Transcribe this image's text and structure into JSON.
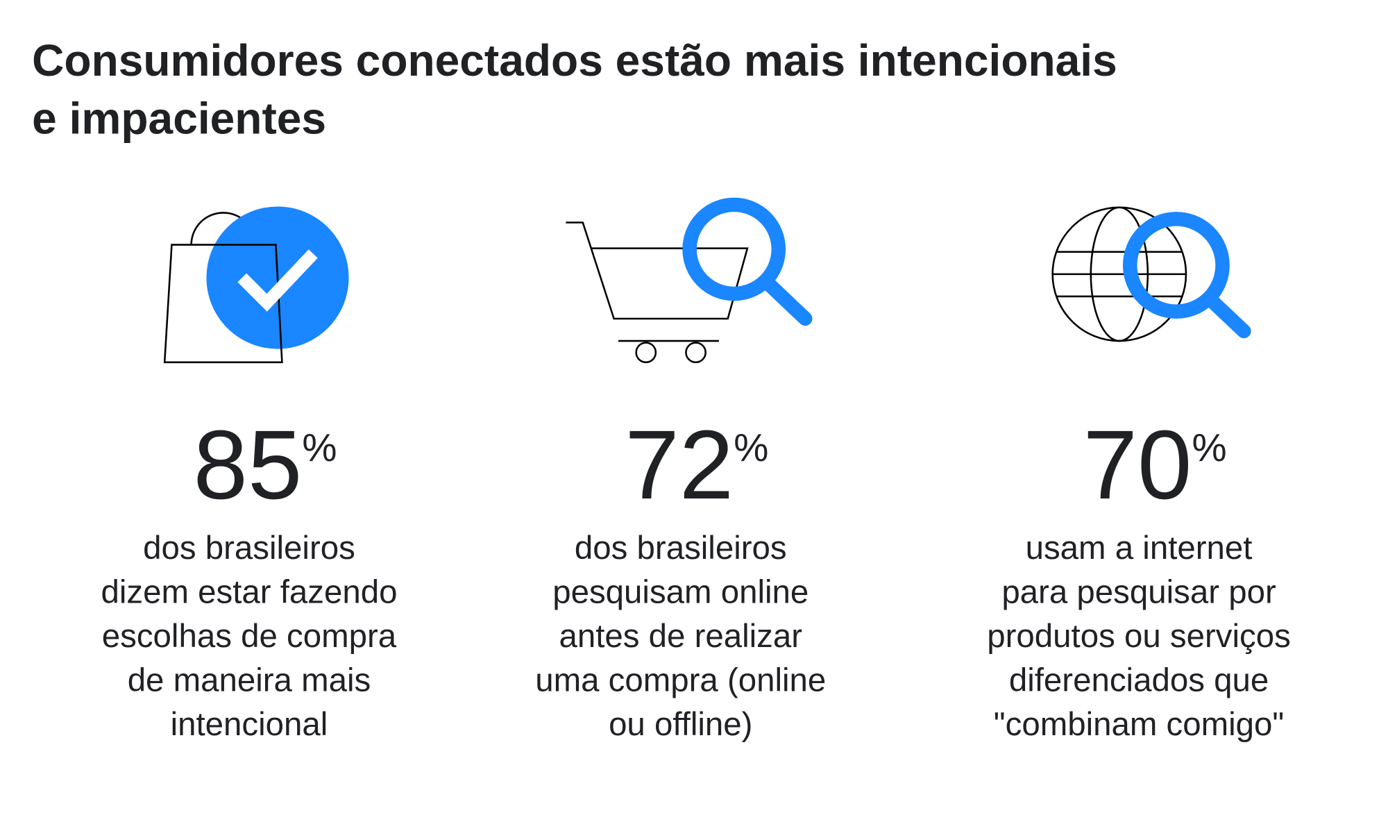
{
  "header": {
    "title_lines": [
      "Consumidores conectados estão mais intencionais",
      "e impacientes"
    ]
  },
  "stats": [
    {
      "value": 85,
      "unit": "%",
      "lines": [
        "dos brasileiros",
        "dizem estar fazendo",
        "escolhas de compra",
        "de maneira mais",
        "intencional"
      ]
    },
    {
      "value": 72,
      "unit": "%",
      "lines": [
        "dos brasileiros",
        "pesquisam online",
        "antes de realizar",
        "uma compra (online",
        "ou offline)"
      ]
    },
    {
      "value": 70,
      "unit": "%",
      "lines": [
        "usam a internet",
        "para pesquisar por",
        "produtos ou serviços",
        "diferenciados que",
        "\"combinam comigo\""
      ]
    }
  ]
}
